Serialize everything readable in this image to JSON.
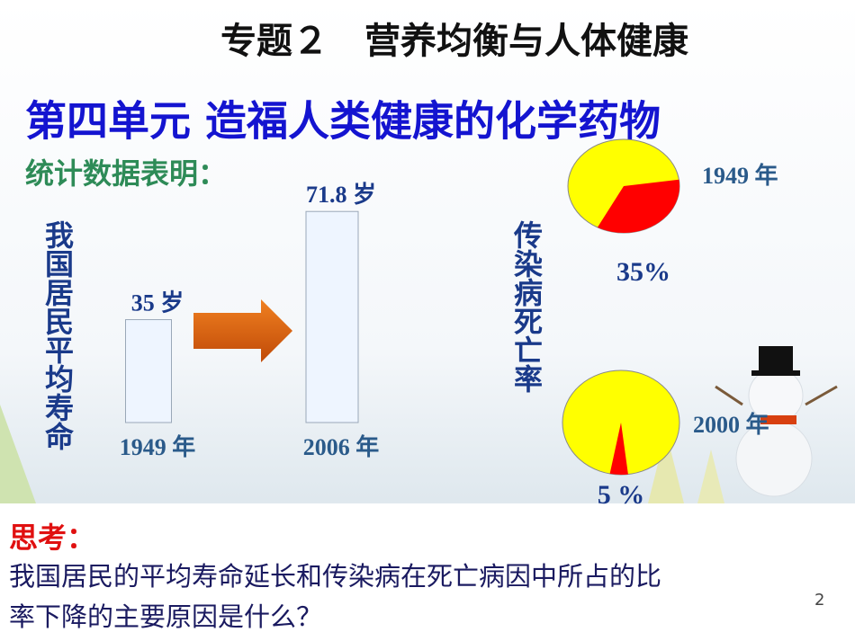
{
  "title": "专题２　营养均衡与人体健康",
  "subtitle": "第四单元 造福人类健康的化学药物",
  "lead": "统计数据表明：",
  "chart_data": [
    {
      "type": "bar",
      "ylabel": "我国居民平均寿命",
      "categories": [
        "1949 年",
        "2006 年"
      ],
      "values": [
        35,
        71.8
      ],
      "value_labels": [
        "35 岁",
        "71.8 岁"
      ],
      "color": "#eef5ff"
    },
    {
      "type": "pie",
      "ylabel": "传染病死亡率",
      "label": "1949 年",
      "values": [
        35
      ],
      "value_labels": [
        "35%"
      ],
      "color": "#ff0000"
    },
    {
      "type": "pie",
      "label": "2000 年",
      "values": [
        5
      ],
      "value_labels": [
        "5 %"
      ],
      "color": "#ff0000"
    }
  ],
  "think": {
    "label": "思考：",
    "lines": [
      "我国居民的平均寿命延长和传染病在死亡病因中所占的比",
      "率下降的主要原因是什么？"
    ]
  },
  "page_number": "2"
}
